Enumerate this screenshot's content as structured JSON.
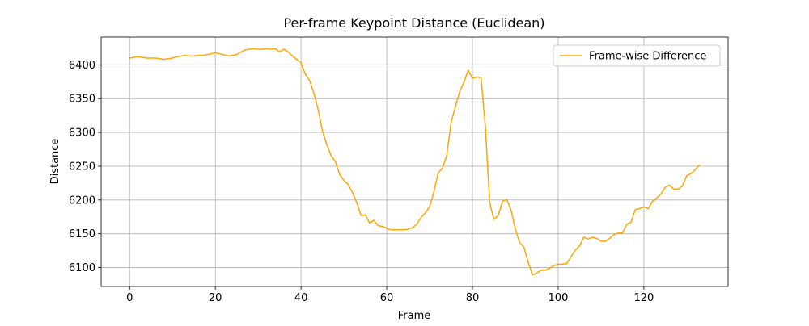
{
  "chart_data": {
    "type": "line",
    "title": "Per-frame Keypoint Distance (Euclidean)",
    "x_label": "Frame",
    "y_label": "Distance",
    "x": [
      0,
      1,
      2,
      3,
      4,
      5,
      6,
      7,
      8,
      9,
      10,
      11,
      12,
      13,
      14,
      15,
      16,
      17,
      18,
      19,
      20,
      21,
      22,
      23,
      24,
      25,
      26,
      27,
      28,
      29,
      30,
      31,
      32,
      33,
      34,
      35,
      36,
      37,
      38,
      39,
      40,
      41,
      42,
      43,
      44,
      45,
      46,
      47,
      48,
      49,
      50,
      51,
      52,
      53,
      54,
      55,
      56,
      57,
      58,
      59,
      60,
      61,
      62,
      63,
      64,
      65,
      66,
      67,
      68,
      69,
      70,
      71,
      72,
      73,
      74,
      75,
      76,
      77,
      78,
      79,
      80,
      81,
      82,
      83,
      84,
      85,
      86,
      87,
      88,
      89,
      90,
      91,
      92,
      93,
      94,
      95,
      96,
      97,
      98,
      99,
      100,
      101,
      102,
      103,
      104,
      105,
      106,
      107,
      108,
      109,
      110,
      111,
      112,
      113,
      114,
      115,
      116,
      117,
      118,
      119,
      120,
      121,
      122,
      123,
      124,
      125,
      126,
      127,
      128,
      129,
      130,
      131,
      132,
      133
    ],
    "series": [
      {
        "name": "Frame-wise Difference",
        "color": "#ffa500",
        "values": [
          6410,
          6411,
          6412,
          6411,
          6410,
          6410,
          6410,
          6409,
          6408,
          6409,
          6410,
          6412,
          6413,
          6414,
          6413,
          6413,
          6414,
          6414,
          6415,
          6416,
          6418,
          6416,
          6415,
          6413,
          6414,
          6415,
          6419,
          6422,
          6423,
          6424,
          6423,
          6423,
          6424,
          6423,
          6424,
          6419,
          6423,
          6419,
          6413,
          6408,
          6403,
          6386,
          6377,
          6358,
          6334,
          6302,
          6282,
          6266,
          6257,
          6238,
          6229,
          6223,
          6211,
          6196,
          6177,
          6178,
          6166,
          6170,
          6162,
          6161,
          6158,
          6156,
          6156,
          6156,
          6156,
          6157,
          6159,
          6164,
          6174,
          6181,
          6190,
          6212,
          6240,
          6247,
          6266,
          6314,
          6338,
          6360,
          6374,
          6392,
          6380,
          6382,
          6381,
          6310,
          6197,
          6171,
          6177,
          6198,
          6201,
          6185,
          6157,
          6137,
          6130,
          6108,
          6089,
          6092,
          6096,
          6096,
          6099,
          6103,
          6105,
          6105,
          6106,
          6116,
          6126,
          6132,
          6145,
          6142,
          6145,
          6143,
          6139,
          6139,
          6143,
          6149,
          6151,
          6151,
          6164,
          6167,
          6186,
          6187,
          6190,
          6187,
          6198,
          6203,
          6209,
          6219,
          6222,
          6216,
          6216,
          6221,
          6236,
          6239,
          6245,
          6252
        ]
      }
    ],
    "xlim": [
      -6.65,
      139.65
    ],
    "ylim": [
      6072,
      6441
    ],
    "xticks": [
      0,
      20,
      40,
      60,
      80,
      100,
      120
    ],
    "yticks": [
      6100,
      6150,
      6200,
      6250,
      6300,
      6350,
      6400
    ],
    "grid": true,
    "legend": "upper right"
  }
}
